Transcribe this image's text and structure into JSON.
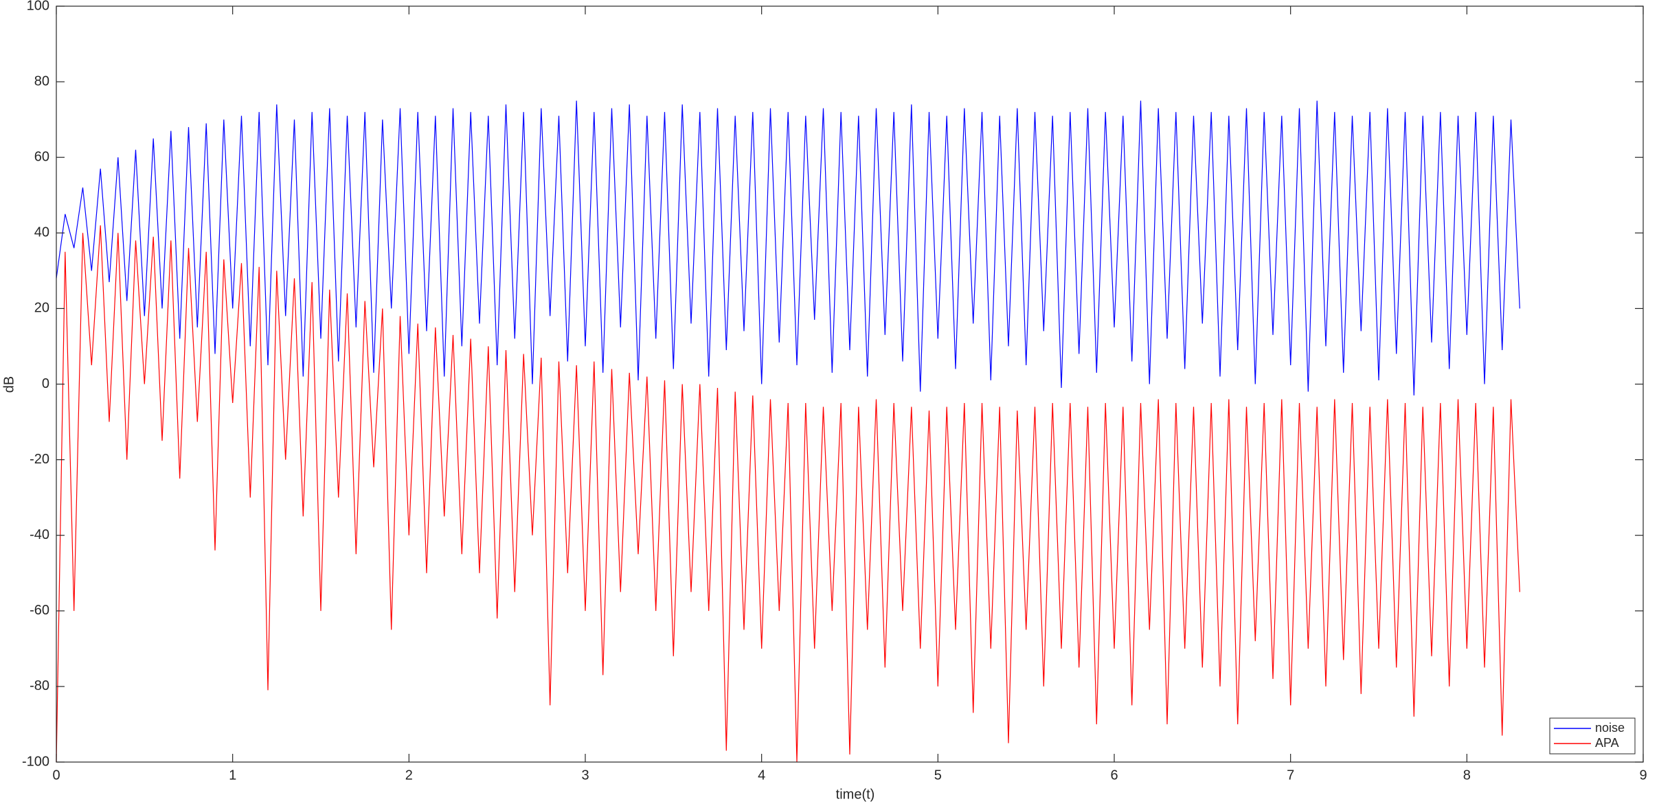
{
  "chart_data": {
    "type": "line",
    "xlabel": "time(t)",
    "ylabel": "dB",
    "xlim": [
      0,
      9
    ],
    "xticks": [
      0,
      1,
      2,
      3,
      4,
      5,
      6,
      7,
      8,
      9
    ],
    "ylim": [
      -100,
      100
    ],
    "yticks": [
      -100,
      -80,
      -60,
      -40,
      -20,
      0,
      20,
      40,
      60,
      80,
      100
    ],
    "grid": false,
    "legend": "lower right",
    "x": [
      0,
      0.05,
      0.1,
      0.15,
      0.2,
      0.25,
      0.3,
      0.35,
      0.4,
      0.45,
      0.5,
      0.55,
      0.6,
      0.65,
      0.7,
      0.75,
      0.8,
      0.85,
      0.9,
      0.95,
      1,
      1.05,
      1.1,
      1.15,
      1.2,
      1.25,
      1.3,
      1.35,
      1.4,
      1.45,
      1.5,
      1.55,
      1.6,
      1.65,
      1.7,
      1.75,
      1.8,
      1.85,
      1.9,
      1.95,
      2,
      2.05,
      2.1,
      2.15,
      2.2,
      2.25,
      2.3,
      2.35,
      2.4,
      2.45,
      2.5,
      2.55,
      2.6,
      2.65,
      2.7,
      2.75,
      2.8,
      2.85,
      2.9,
      2.95,
      3,
      3.05,
      3.1,
      3.15,
      3.2,
      3.25,
      3.3,
      3.35,
      3.4,
      3.45,
      3.5,
      3.55,
      3.6,
      3.65,
      3.7,
      3.75,
      3.8,
      3.85,
      3.9,
      3.95,
      4,
      4.05,
      4.1,
      4.15,
      4.2,
      4.25,
      4.3,
      4.35,
      4.4,
      4.45,
      4.5,
      4.55,
      4.6,
      4.65,
      4.7,
      4.75,
      4.8,
      4.85,
      4.9,
      4.95,
      5,
      5.05,
      5.1,
      5.15,
      5.2,
      5.25,
      5.3,
      5.35,
      5.4,
      5.45,
      5.5,
      5.55,
      5.6,
      5.65,
      5.7,
      5.75,
      5.8,
      5.85,
      5.9,
      5.95,
      6,
      6.05,
      6.1,
      6.15,
      6.2,
      6.25,
      6.3,
      6.35,
      6.4,
      6.45,
      6.5,
      6.55,
      6.6,
      6.65,
      6.7,
      6.75,
      6.8,
      6.85,
      6.9,
      6.95,
      7,
      7.05,
      7.1,
      7.15,
      7.2,
      7.25,
      7.3,
      7.35,
      7.4,
      7.45,
      7.5,
      7.55,
      7.6,
      7.65,
      7.7,
      7.75,
      7.8,
      7.85,
      7.9,
      7.95,
      8,
      8.05,
      8.1,
      8.15,
      8.2,
      8.25,
      8.3
    ],
    "series": [
      {
        "name": "noise",
        "color": "#0000ff",
        "values": [
          28,
          45,
          36,
          52,
          30,
          57,
          27,
          60,
          22,
          62,
          18,
          65,
          20,
          67,
          12,
          68,
          15,
          69,
          8,
          70,
          20,
          71,
          10,
          72,
          5,
          74,
          18,
          70,
          2,
          72,
          12,
          73,
          6,
          71,
          15,
          72,
          3,
          70,
          20,
          73,
          8,
          72,
          14,
          71,
          2,
          73,
          10,
          72,
          16,
          71,
          5,
          74,
          12,
          72,
          0,
          73,
          18,
          71,
          6,
          75,
          10,
          72,
          3,
          73,
          15,
          74,
          1,
          71,
          12,
          72,
          4,
          74,
          16,
          72,
          2,
          73,
          9,
          71,
          14,
          72,
          0,
          73,
          11,
          72,
          5,
          71,
          17,
          73,
          3,
          72,
          9,
          71,
          2,
          73,
          13,
          72,
          6,
          74,
          -2,
          72,
          12,
          71,
          4,
          73,
          16,
          72,
          1,
          71,
          10,
          73,
          5,
          72,
          14,
          71,
          -1,
          72,
          8,
          73,
          3,
          72,
          15,
          71,
          6,
          75,
          0,
          73,
          12,
          72,
          4,
          71,
          16,
          72,
          2,
          71,
          9,
          73,
          0,
          72,
          13,
          71,
          5,
          73,
          -2,
          75,
          10,
          72,
          3,
          71,
          14,
          72,
          1,
          73,
          8,
          72,
          -3,
          71,
          11,
          72,
          4,
          71,
          13,
          72,
          0,
          71,
          9,
          70,
          20
        ]
      },
      {
        "name": "APA",
        "color": "#ff0000",
        "values": [
          -100,
          35,
          -60,
          40,
          5,
          42,
          -10,
          40,
          -20,
          38,
          0,
          39,
          -15,
          38,
          -25,
          36,
          -10,
          35,
          -44,
          33,
          -5,
          32,
          -30,
          31,
          -81,
          30,
          -20,
          28,
          -35,
          27,
          -60,
          25,
          -30,
          24,
          -45,
          22,
          -22,
          20,
          -65,
          18,
          -40,
          16,
          -50,
          15,
          -35,
          13,
          -45,
          12,
          -50,
          10,
          -62,
          9,
          -55,
          8,
          -40,
          7,
          -85,
          6,
          -50,
          5,
          -60,
          6,
          -77,
          4,
          -55,
          3,
          -45,
          2,
          -60,
          1,
          -72,
          0,
          -55,
          0,
          -60,
          -1,
          -97,
          -2,
          -65,
          -3,
          -70,
          -4,
          -60,
          -5,
          -100,
          -5,
          -70,
          -6,
          -60,
          -5,
          -98,
          -6,
          -65,
          -4,
          -75,
          -5,
          -60,
          -6,
          -70,
          -7,
          -80,
          -6,
          -65,
          -5,
          -87,
          -5,
          -70,
          -6,
          -95,
          -7,
          -65,
          -6,
          -80,
          -5,
          -70,
          -5,
          -75,
          -6,
          -90,
          -5,
          -70,
          -6,
          -85,
          -5,
          -65,
          -4,
          -90,
          -5,
          -70,
          -6,
          -75,
          -5,
          -80,
          -4,
          -90,
          -6,
          -68,
          -5,
          -78,
          -4,
          -85,
          -5,
          -70,
          -6,
          -80,
          -4,
          -73,
          -5,
          -82,
          -6,
          -70,
          -4,
          -75,
          -5,
          -88,
          -6,
          -72,
          -5,
          -80,
          -4,
          -70,
          -5,
          -75,
          -6,
          -93,
          -4,
          -55
        ]
      }
    ]
  }
}
